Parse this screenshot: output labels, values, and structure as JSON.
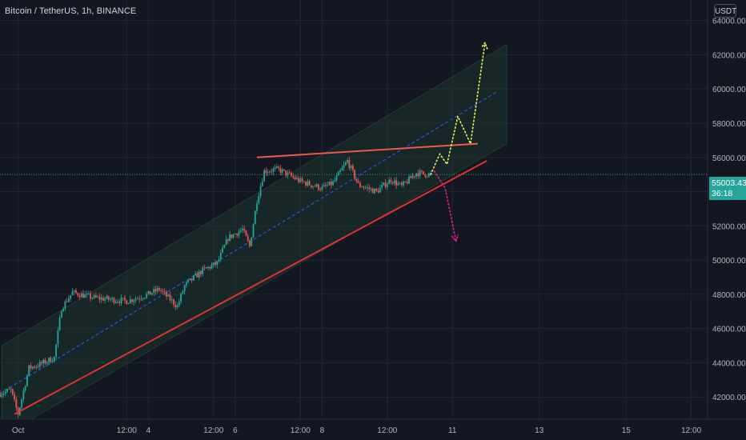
{
  "header": {
    "symbol_title": "Bitcoin / TetherUS, 1h, BINANCE",
    "currency_button": "USDT"
  },
  "current_price": {
    "value": "55003.43",
    "countdown": "36:18"
  },
  "colors": {
    "background": "#131722",
    "grid": "#232632",
    "axis_text": "#b2b5be",
    "up_candle": "#26a69a",
    "down_candle": "#ef5350",
    "channel_fill": "#1d3a2e",
    "support_line": "#e03131",
    "resistance_line": "#f05a4a",
    "midline": "#2962ff",
    "bull_path": "#e8f55c",
    "bear_path": "#e91e8c",
    "price_tag": "#26a69a"
  },
  "chart_data": {
    "type": "candlestick",
    "title": "Bitcoin / TetherUS, 1h, BINANCE",
    "ylim": [
      40700,
      65200
    ],
    "y_ticks": [
      42000,
      44000,
      46000,
      48000,
      50000,
      52000,
      54000,
      56000,
      58000,
      60000,
      62000,
      64000
    ],
    "y_tick_labels": [
      "42000.00",
      "44000.00",
      "46000.00",
      "48000.00",
      "50000.00",
      "52000.00",
      "54000.00",
      "56000.00",
      "58000.00",
      "60000.00",
      "62000.00",
      "64000.00"
    ],
    "x_ticks": [
      "Oct",
      "12:00",
      "4",
      "12:00",
      "6",
      "12:00",
      "8",
      "12:00",
      "11",
      "13",
      "15",
      "12:00"
    ],
    "x_tick_times": [
      "2021-10-01 00:00",
      "2021-10-03 12:00",
      "2021-10-04 00:00",
      "2021-10-05 12:00",
      "2021-10-06 00:00",
      "2021-10-07 12:00",
      "2021-10-08 00:00",
      "2021-10-09 12:00",
      "2021-10-11 00:00",
      "2021-10-13 00:00",
      "2021-10-15 00:00",
      "2021-10-16 12:00"
    ],
    "x_range": [
      "2021-09-30 14:00",
      "2021-10-16 21:00"
    ],
    "anchors": [
      {
        "t": "2021-09-30 14:00",
        "p": 42200
      },
      {
        "t": "2021-09-30 20:00",
        "p": 42400
      },
      {
        "t": "2021-10-01 00:00",
        "p": 41000
      },
      {
        "t": "2021-10-01 06:00",
        "p": 43700
      },
      {
        "t": "2021-10-01 12:00",
        "p": 43900
      },
      {
        "t": "2021-10-01 20:00",
        "p": 44300
      },
      {
        "t": "2021-10-02 00:00",
        "p": 47200
      },
      {
        "t": "2021-10-02 06:00",
        "p": 48100
      },
      {
        "t": "2021-10-02 18:00",
        "p": 47800
      },
      {
        "t": "2021-10-03 12:00",
        "p": 47600
      },
      {
        "t": "2021-10-04 00:00",
        "p": 48000
      },
      {
        "t": "2021-10-04 06:00",
        "p": 48300
      },
      {
        "t": "2021-10-04 16:00",
        "p": 47300
      },
      {
        "t": "2021-10-04 20:00",
        "p": 48500
      },
      {
        "t": "2021-10-05 06:00",
        "p": 49400
      },
      {
        "t": "2021-10-05 14:00",
        "p": 49800
      },
      {
        "t": "2021-10-05 20:00",
        "p": 51300
      },
      {
        "t": "2021-10-06 04:00",
        "p": 51800
      },
      {
        "t": "2021-10-06 08:00",
        "p": 50800
      },
      {
        "t": "2021-10-06 12:00",
        "p": 53500
      },
      {
        "t": "2021-10-06 16:00",
        "p": 55200
      },
      {
        "t": "2021-10-07 00:00",
        "p": 55300
      },
      {
        "t": "2021-10-07 12:00",
        "p": 54600
      },
      {
        "t": "2021-10-08 00:00",
        "p": 54200
      },
      {
        "t": "2021-10-08 06:00",
        "p": 54500
      },
      {
        "t": "2021-10-08 14:00",
        "p": 55800
      },
      {
        "t": "2021-10-08 20:00",
        "p": 54400
      },
      {
        "t": "2021-10-09 06:00",
        "p": 54000
      },
      {
        "t": "2021-10-09 14:00",
        "p": 54700
      },
      {
        "t": "2021-10-09 20:00",
        "p": 54300
      },
      {
        "t": "2021-10-10 04:00",
        "p": 55100
      },
      {
        "t": "2021-10-10 12:00",
        "p": 55000
      }
    ],
    "overlays": {
      "channel_band": {
        "left_top": {
          "t": "2021-09-30 15:00",
          "p": 45000
        },
        "right_top": {
          "t": "2021-10-12 06:00",
          "p": 62600
        },
        "right_bottom": {
          "t": "2021-10-12 06:00",
          "p": 56800
        },
        "left_bottom": {
          "t": "2021-09-30 15:00",
          "p": 39700
        }
      },
      "midline": [
        {
          "t": "2021-09-30 14:00",
          "p": 42200
        },
        {
          "t": "2021-10-12 00:00",
          "p": 59800
        }
      ],
      "support_line": [
        {
          "t": "2021-09-30 22:00",
          "p": 41000
        },
        {
          "t": "2021-10-11 19:00",
          "p": 55800
        }
      ],
      "resistance_line": [
        {
          "t": "2021-10-06 12:00",
          "p": 56000
        },
        {
          "t": "2021-10-11 14:00",
          "p": 56800
        }
      ],
      "bull_path": [
        {
          "t": "2021-10-10 12:00",
          "p": 55000
        },
        {
          "t": "2021-10-10 17:00",
          "p": 56200
        },
        {
          "t": "2021-10-10 21:00",
          "p": 55600
        },
        {
          "t": "2021-10-11 03:00",
          "p": 58400
        },
        {
          "t": "2021-10-11 10:00",
          "p": 56800
        },
        {
          "t": "2021-10-11 18:00",
          "p": 62700
        }
      ],
      "bear_path": [
        {
          "t": "2021-10-10 14:00",
          "p": 55200
        },
        {
          "t": "2021-10-10 20:00",
          "p": 54200
        },
        {
          "t": "2021-10-11 02:00",
          "p": 51100
        }
      ],
      "current_price_line": 55003.43
    }
  }
}
